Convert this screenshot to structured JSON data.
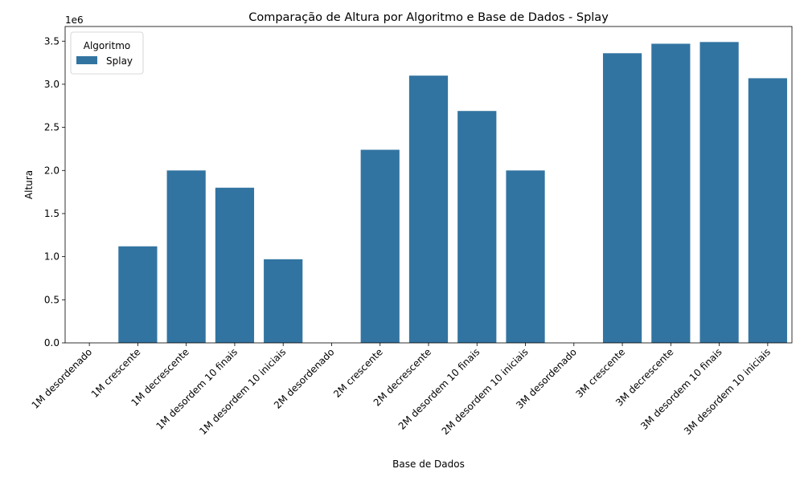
{
  "chart_data": {
    "type": "bar",
    "title": "Comparação de Altura por Algoritmo e Base de Dados - Splay",
    "xlabel": "Base de Dados",
    "ylabel": "Altura",
    "y_offset_label": "1e6",
    "y_scale": 1000000,
    "ylim": [
      0,
      3.67
    ],
    "y_ticks": [
      0,
      0.5,
      1.0,
      1.5,
      2.0,
      2.5,
      3.0,
      3.5
    ],
    "y_tick_labels": [
      "0.0",
      "0.5",
      "1.0",
      "1.5",
      "2.0",
      "2.5",
      "3.0",
      "3.5"
    ],
    "grid": false,
    "legend": {
      "title": "Algoritmo",
      "position": "top-left"
    },
    "categories": [
      "1M desordenado",
      "1M crescente",
      "1M decrescente",
      "1M desordem 10 finais",
      "1M desordem 10 iniciais",
      "2M desordenado",
      "2M crescente",
      "2M decrescente",
      "2M desordem 10 finais",
      "2M desordem 10 iniciais",
      "3M desordenado",
      "3M crescente",
      "3M decrescente",
      "3M desordem 10 finais",
      "3M desordem 10 iniciais"
    ],
    "series": [
      {
        "name": "Splay",
        "color": "#3274a1",
        "values": [
          0,
          1.12,
          2.0,
          1.8,
          0.97,
          0,
          2.24,
          3.1,
          2.69,
          2.0,
          0,
          3.36,
          3.47,
          3.49,
          3.07
        ]
      }
    ]
  }
}
